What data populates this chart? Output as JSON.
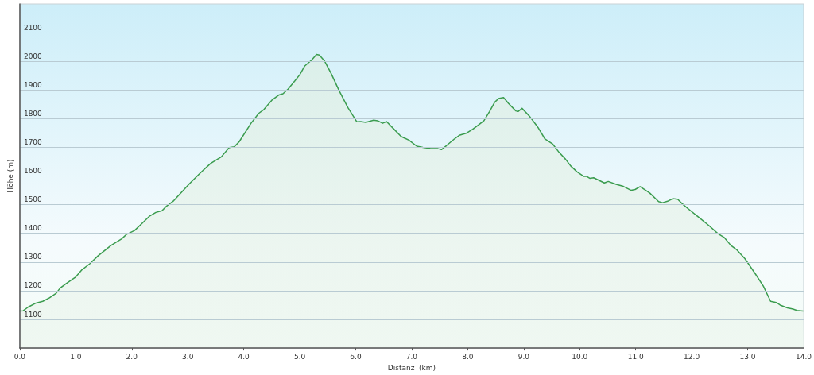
{
  "chart_data": {
    "type": "area",
    "xlabel": "Distanz  (km)",
    "ylabel": "Höhe (m)",
    "x": [
      0,
      0.06,
      0.15,
      0.29,
      0.41,
      0.53,
      0.65,
      0.72,
      0.83,
      1.0,
      1.11,
      1.25,
      1.4,
      1.63,
      1.82,
      1.91,
      2.05,
      2.19,
      2.31,
      2.43,
      2.54,
      2.61,
      2.75,
      3.03,
      3.22,
      3.41,
      3.6,
      3.74,
      3.83,
      3.92,
      4.13,
      4.27,
      4.36,
      4.46,
      4.51,
      4.63,
      4.7,
      4.79,
      4.91,
      5.0,
      5.09,
      5.21,
      5.3,
      5.35,
      5.44,
      5.56,
      5.7,
      5.86,
      6.02,
      6.09,
      6.18,
      6.32,
      6.39,
      6.48,
      6.55,
      6.67,
      6.81,
      6.95,
      7.09,
      7.2,
      7.34,
      7.46,
      7.53,
      7.62,
      7.76,
      7.85,
      7.97,
      8.09,
      8.2,
      8.29,
      8.39,
      8.48,
      8.55,
      8.64,
      8.73,
      8.86,
      8.9,
      8.97,
      9.11,
      9.22,
      9.26,
      9.38,
      9.52,
      9.63,
      9.75,
      9.84,
      9.95,
      10.07,
      10.12,
      10.18,
      10.25,
      10.44,
      10.51,
      10.65,
      10.78,
      10.92,
      10.99,
      11.08,
      11.25,
      11.41,
      11.48,
      11.57,
      11.66,
      11.75,
      11.85,
      11.98,
      12.12,
      12.31,
      12.47,
      12.58,
      12.7,
      12.81,
      12.95,
      13.14,
      13.28,
      13.41,
      13.51,
      13.58,
      13.71,
      13.81,
      13.88,
      13.99,
      14.0
    ],
    "series": [
      {
        "color": "#3b9c4f",
        "values": [
          1129,
          1130,
          1143,
          1157,
          1163,
          1175,
          1191,
          1209,
          1225,
          1248,
          1273,
          1294,
          1322,
          1358,
          1381,
          1397,
          1410,
          1436,
          1459,
          1473,
          1479,
          1493,
          1514,
          1573,
          1610,
          1644,
          1667,
          1699,
          1702,
          1720,
          1784,
          1819,
          1832,
          1855,
          1866,
          1883,
          1887,
          1903,
          1931,
          1953,
          1984,
          2004,
          2024,
          2022,
          2002,
          1958,
          1899,
          1839,
          1789,
          1790,
          1787,
          1795,
          1793,
          1784,
          1790,
          1766,
          1738,
          1725,
          1704,
          1700,
          1696,
          1696,
          1692,
          1706,
          1729,
          1742,
          1749,
          1763,
          1779,
          1793,
          1825,
          1857,
          1870,
          1874,
          1853,
          1827,
          1825,
          1836,
          1807,
          1779,
          1768,
          1729,
          1711,
          1683,
          1658,
          1635,
          1615,
          1599,
          1599,
          1592,
          1594,
          1576,
          1581,
          1571,
          1564,
          1550,
          1553,
          1563,
          1541,
          1511,
          1507,
          1512,
          1521,
          1519,
          1500,
          1479,
          1457,
          1427,
          1399,
          1386,
          1358,
          1342,
          1312,
          1258,
          1216,
          1163,
          1159,
          1150,
          1140,
          1136,
          1131,
          1129,
          1129
        ]
      }
    ],
    "xlim": [
      0,
      14
    ],
    "xticks": [
      {
        "value": 0,
        "label": "0.0"
      },
      {
        "value": 1,
        "label": "1.0"
      },
      {
        "value": 2,
        "label": "2.0"
      },
      {
        "value": 3,
        "label": "3.0"
      },
      {
        "value": 4,
        "label": "4.0"
      },
      {
        "value": 5,
        "label": "5.0"
      },
      {
        "value": 6,
        "label": "6.0"
      },
      {
        "value": 7,
        "label": "7.0"
      },
      {
        "value": 8,
        "label": "8.0"
      },
      {
        "value": 9,
        "label": "9.0"
      },
      {
        "value": 10,
        "label": "10.0"
      },
      {
        "value": 11,
        "label": "11.0"
      },
      {
        "value": 12,
        "label": "12.0"
      },
      {
        "value": 13,
        "label": "13.0"
      },
      {
        "value": 14,
        "label": "14.0"
      }
    ],
    "ylim": [
      1000,
      2200
    ],
    "yticks": [
      1100,
      1200,
      1300,
      1400,
      1500,
      1600,
      1700,
      1800,
      1900,
      2000,
      2100
    ],
    "grid": "y",
    "marker": "none",
    "line_style": "solid"
  }
}
